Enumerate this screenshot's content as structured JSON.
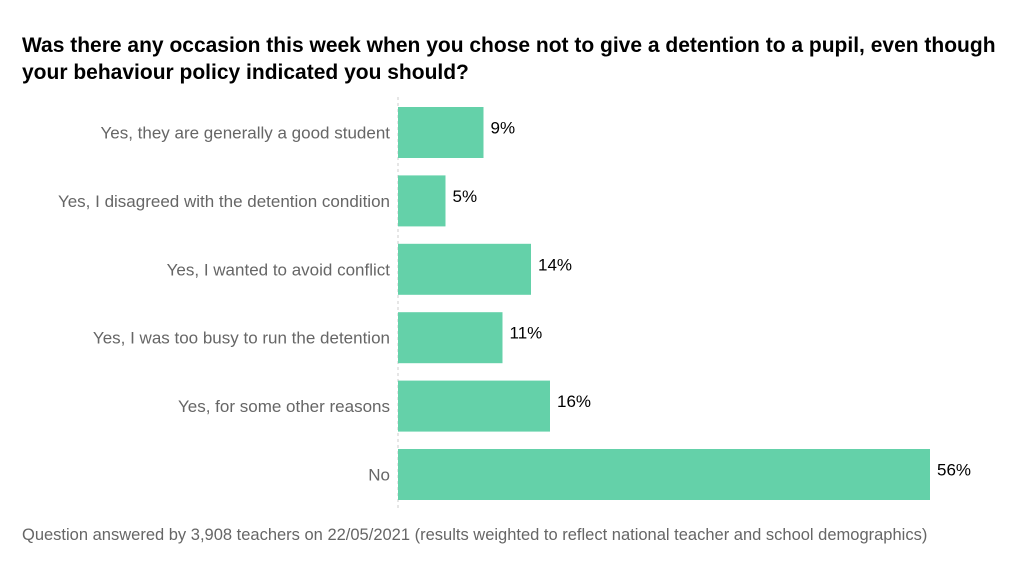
{
  "chart_data": {
    "type": "bar",
    "orientation": "horizontal",
    "title": "Was there any occasion this week when you chose not to give a detention to a pupil, even though your behaviour policy indicated you should?",
    "categories": [
      "Yes, they are generally a good student",
      "Yes, I disagreed with the detention condition",
      "Yes, I wanted to avoid conflict",
      "Yes, I was too busy to run the detention",
      "Yes, for some other reasons",
      "No"
    ],
    "values": [
      9,
      5,
      14,
      11,
      16,
      56
    ],
    "value_labels": [
      "9%",
      "5%",
      "14%",
      "11%",
      "16%",
      "56%"
    ],
    "unit": "%",
    "xlabel": "",
    "ylabel": "",
    "xlim": [
      0,
      56
    ],
    "grid": false,
    "bar_color": "#64d1a9"
  },
  "footer": "Question answered by 3,908 teachers on 22/05/2021 (results weighted to reflect national teacher and school demographics)"
}
